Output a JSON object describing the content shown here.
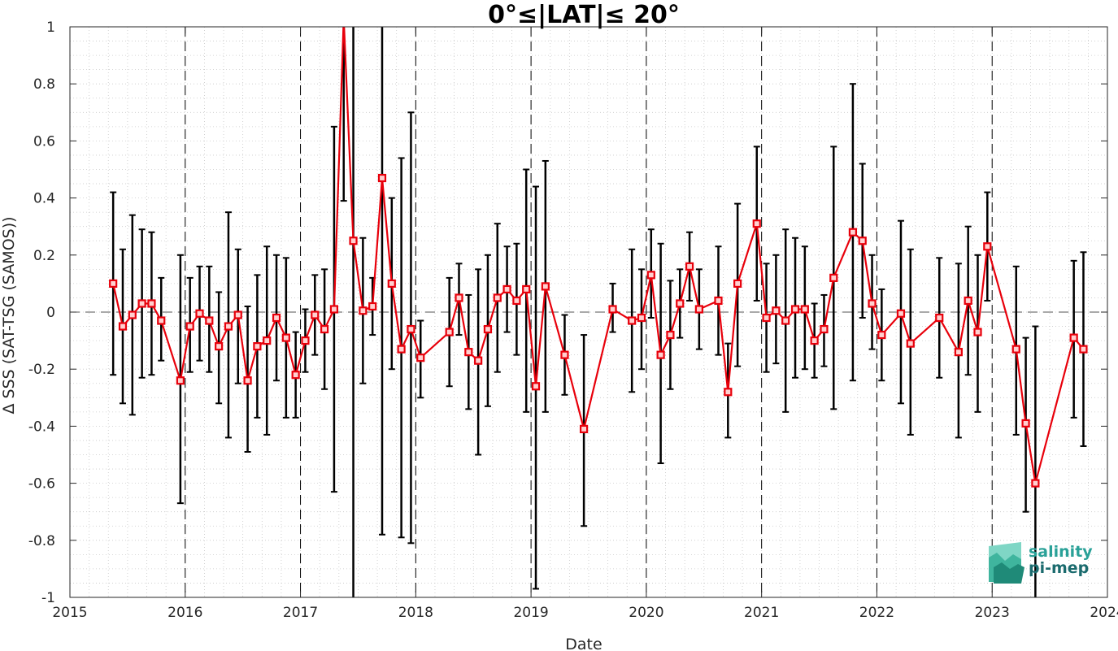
{
  "chart_data": {
    "type": "line",
    "title": "0°≤|LAT|≤ 20°",
    "xlabel": "Date",
    "ylabel": "Δ SSS (SAT-TSG (SAMOS))",
    "xlim": [
      2015,
      2024
    ],
    "ylim": [
      -1,
      1
    ],
    "x_ticks": [
      "2015",
      "2016",
      "2017",
      "2018",
      "2019",
      "2020",
      "2021",
      "2022",
      "2023",
      "2024"
    ],
    "y_ticks": [
      "-1",
      "-0.8",
      "-0.6",
      "-0.4",
      "-0.2",
      "0",
      "0.2",
      "0.4",
      "0.6",
      "0.8",
      "1"
    ],
    "grid": "dotted minor grid",
    "year_separators": "dashed vertical lines at 2016–2023",
    "zero_line": "dashed horizontal line at 0",
    "series": [
      {
        "color": "#e8000b",
        "marker": "square",
        "points": [
          {
            "x": "2015-05",
            "y": 0.1,
            "lo": -0.22,
            "hi": 0.42
          },
          {
            "x": "2015-06",
            "y": -0.05,
            "lo": -0.32,
            "hi": 0.22
          },
          {
            "x": "2015-07",
            "y": -0.01,
            "lo": -0.36,
            "hi": 0.34
          },
          {
            "x": "2015-08",
            "y": 0.03,
            "lo": -0.23,
            "hi": 0.29
          },
          {
            "x": "2015-09",
            "y": 0.03,
            "lo": -0.22,
            "hi": 0.28
          },
          {
            "x": "2015-10",
            "y": -0.03,
            "lo": -0.17,
            "hi": 0.12
          },
          {
            "x": "2015-12",
            "y": -0.24,
            "lo": -0.67,
            "hi": 0.2
          },
          {
            "x": "2016-01",
            "y": -0.05,
            "lo": -0.21,
            "hi": 0.12
          },
          {
            "x": "2016-02",
            "y": -0.005,
            "lo": -0.17,
            "hi": 0.16
          },
          {
            "x": "2016-03",
            "y": -0.03,
            "lo": -0.21,
            "hi": 0.16
          },
          {
            "x": "2016-04",
            "y": -0.12,
            "lo": -0.32,
            "hi": 0.07
          },
          {
            "x": "2016-05",
            "y": -0.05,
            "lo": -0.44,
            "hi": 0.35
          },
          {
            "x": "2016-06",
            "y": -0.01,
            "lo": -0.25,
            "hi": 0.22
          },
          {
            "x": "2016-07",
            "y": -0.24,
            "lo": -0.49,
            "hi": 0.02
          },
          {
            "x": "2016-08",
            "y": -0.12,
            "lo": -0.37,
            "hi": 0.13
          },
          {
            "x": "2016-09",
            "y": -0.1,
            "lo": -0.43,
            "hi": 0.23
          },
          {
            "x": "2016-10",
            "y": -0.02,
            "lo": -0.24,
            "hi": 0.2
          },
          {
            "x": "2016-11",
            "y": -0.09,
            "lo": -0.37,
            "hi": 0.19
          },
          {
            "x": "2016-12",
            "y": -0.22,
            "lo": -0.37,
            "hi": -0.07
          },
          {
            "x": "2017-01",
            "y": -0.1,
            "lo": -0.21,
            "hi": 0.01
          },
          {
            "x": "2017-02",
            "y": -0.01,
            "lo": -0.15,
            "hi": 0.13
          },
          {
            "x": "2017-03",
            "y": -0.06,
            "lo": -0.27,
            "hi": 0.15
          },
          {
            "x": "2017-04",
            "y": 0.01,
            "lo": -0.63,
            "hi": 0.65
          },
          {
            "x": "2017-05",
            "y": 1.03,
            "lo": 0.39,
            "hi": 1.0
          },
          {
            "x": "2017-06",
            "y": 0.25,
            "lo": -1.0,
            "hi": 1.0
          },
          {
            "x": "2017-07",
            "y": 0.005,
            "lo": -0.25,
            "hi": 0.26
          },
          {
            "x": "2017-08",
            "y": 0.02,
            "lo": -0.08,
            "hi": 0.12
          },
          {
            "x": "2017-09",
            "y": 0.47,
            "lo": -0.78,
            "hi": 1.0
          },
          {
            "x": "2017-10",
            "y": 0.1,
            "lo": -0.2,
            "hi": 0.4
          },
          {
            "x": "2017-11",
            "y": -0.13,
            "lo": -0.79,
            "hi": 0.54
          },
          {
            "x": "2017-12",
            "y": -0.06,
            "lo": -0.81,
            "hi": 0.7
          },
          {
            "x": "2018-01",
            "y": -0.16,
            "lo": -0.3,
            "hi": -0.03
          },
          {
            "x": "2018-04",
            "y": -0.07,
            "lo": -0.26,
            "hi": 0.12
          },
          {
            "x": "2018-05",
            "y": 0.05,
            "lo": -0.08,
            "hi": 0.17
          },
          {
            "x": "2018-06",
            "y": -0.14,
            "lo": -0.34,
            "hi": 0.06
          },
          {
            "x": "2018-07",
            "y": -0.17,
            "lo": -0.5,
            "hi": 0.15
          },
          {
            "x": "2018-08",
            "y": -0.06,
            "lo": -0.33,
            "hi": 0.2
          },
          {
            "x": "2018-09",
            "y": 0.05,
            "lo": -0.21,
            "hi": 0.31
          },
          {
            "x": "2018-10",
            "y": 0.08,
            "lo": -0.07,
            "hi": 0.23
          },
          {
            "x": "2018-11",
            "y": 0.04,
            "lo": -0.15,
            "hi": 0.24
          },
          {
            "x": "2018-12",
            "y": 0.08,
            "lo": -0.35,
            "hi": 0.5
          },
          {
            "x": "2019-01",
            "y": -0.26,
            "lo": -0.97,
            "hi": 0.44
          },
          {
            "x": "2019-02",
            "y": 0.09,
            "lo": -0.35,
            "hi": 0.53
          },
          {
            "x": "2019-04",
            "y": -0.15,
            "lo": -0.29,
            "hi": -0.01
          },
          {
            "x": "2019-06",
            "y": -0.41,
            "lo": -0.75,
            "hi": -0.08
          },
          {
            "x": "2019-09",
            "y": 0.01,
            "lo": -0.07,
            "hi": 0.1
          },
          {
            "x": "2019-11",
            "y": -0.03,
            "lo": -0.28,
            "hi": 0.22
          },
          {
            "x": "2019-12",
            "y": -0.02,
            "lo": -0.2,
            "hi": 0.15
          },
          {
            "x": "2020-01",
            "y": 0.13,
            "lo": -0.02,
            "hi": 0.29
          },
          {
            "x": "2020-02",
            "y": -0.15,
            "lo": -0.53,
            "hi": 0.24
          },
          {
            "x": "2020-03",
            "y": -0.08,
            "lo": -0.27,
            "hi": 0.11
          },
          {
            "x": "2020-04",
            "y": 0.03,
            "lo": -0.09,
            "hi": 0.15
          },
          {
            "x": "2020-05",
            "y": 0.16,
            "lo": 0.04,
            "hi": 0.28
          },
          {
            "x": "2020-06",
            "y": 0.01,
            "lo": -0.13,
            "hi": 0.15
          },
          {
            "x": "2020-08",
            "y": 0.04,
            "lo": -0.15,
            "hi": 0.23
          },
          {
            "x": "2020-09",
            "y": -0.28,
            "lo": -0.44,
            "hi": -0.11
          },
          {
            "x": "2020-10",
            "y": 0.1,
            "lo": -0.19,
            "hi": 0.38
          },
          {
            "x": "2020-12",
            "y": 0.31,
            "lo": 0.04,
            "hi": 0.58
          },
          {
            "x": "2021-01",
            "y": -0.02,
            "lo": -0.21,
            "hi": 0.17
          },
          {
            "x": "2021-02",
            "y": 0.005,
            "lo": -0.18,
            "hi": 0.2
          },
          {
            "x": "2021-03",
            "y": -0.03,
            "lo": -0.35,
            "hi": 0.29
          },
          {
            "x": "2021-04",
            "y": 0.01,
            "lo": -0.23,
            "hi": 0.26
          },
          {
            "x": "2021-05",
            "y": 0.01,
            "lo": -0.2,
            "hi": 0.23
          },
          {
            "x": "2021-06",
            "y": -0.1,
            "lo": -0.23,
            "hi": 0.03
          },
          {
            "x": "2021-07",
            "y": -0.06,
            "lo": -0.19,
            "hi": 0.06
          },
          {
            "x": "2021-08",
            "y": 0.12,
            "lo": -0.34,
            "hi": 0.58
          },
          {
            "x": "2021-10",
            "y": 0.28,
            "lo": -0.24,
            "hi": 0.8
          },
          {
            "x": "2021-11",
            "y": 0.25,
            "lo": -0.02,
            "hi": 0.52
          },
          {
            "x": "2021-12",
            "y": 0.03,
            "lo": -0.13,
            "hi": 0.2
          },
          {
            "x": "2022-01",
            "y": -0.08,
            "lo": -0.24,
            "hi": 0.08
          },
          {
            "x": "2022-03",
            "y": -0.005,
            "lo": -0.32,
            "hi": 0.32
          },
          {
            "x": "2022-04",
            "y": -0.11,
            "lo": -0.43,
            "hi": 0.22
          },
          {
            "x": "2022-07",
            "y": -0.02,
            "lo": -0.23,
            "hi": 0.19
          },
          {
            "x": "2022-09",
            "y": -0.14,
            "lo": -0.44,
            "hi": 0.17
          },
          {
            "x": "2022-10",
            "y": 0.04,
            "lo": -0.22,
            "hi": 0.3
          },
          {
            "x": "2022-11",
            "y": -0.07,
            "lo": -0.35,
            "hi": 0.2
          },
          {
            "x": "2022-12",
            "y": 0.23,
            "lo": 0.04,
            "hi": 0.42
          },
          {
            "x": "2023-03",
            "y": -0.13,
            "lo": -0.43,
            "hi": 0.16
          },
          {
            "x": "2023-04",
            "y": -0.39,
            "lo": -0.7,
            "hi": -0.09
          },
          {
            "x": "2023-05",
            "y": -0.6,
            "lo": -1.0,
            "hi": -0.05
          },
          {
            "x": "2023-09",
            "y": -0.09,
            "lo": -0.37,
            "hi": 0.18
          },
          {
            "x": "2023-10",
            "y": -0.13,
            "lo": -0.47,
            "hi": 0.21
          }
        ]
      }
    ]
  },
  "logo": {
    "line1": "salinity",
    "line2": "pi-mep",
    "color1": "#2aa198",
    "color2": "#1b6b6e"
  },
  "colors": {
    "series": "#e8000b",
    "errorbar": "#000000",
    "grid": "#c8c8c8"
  }
}
